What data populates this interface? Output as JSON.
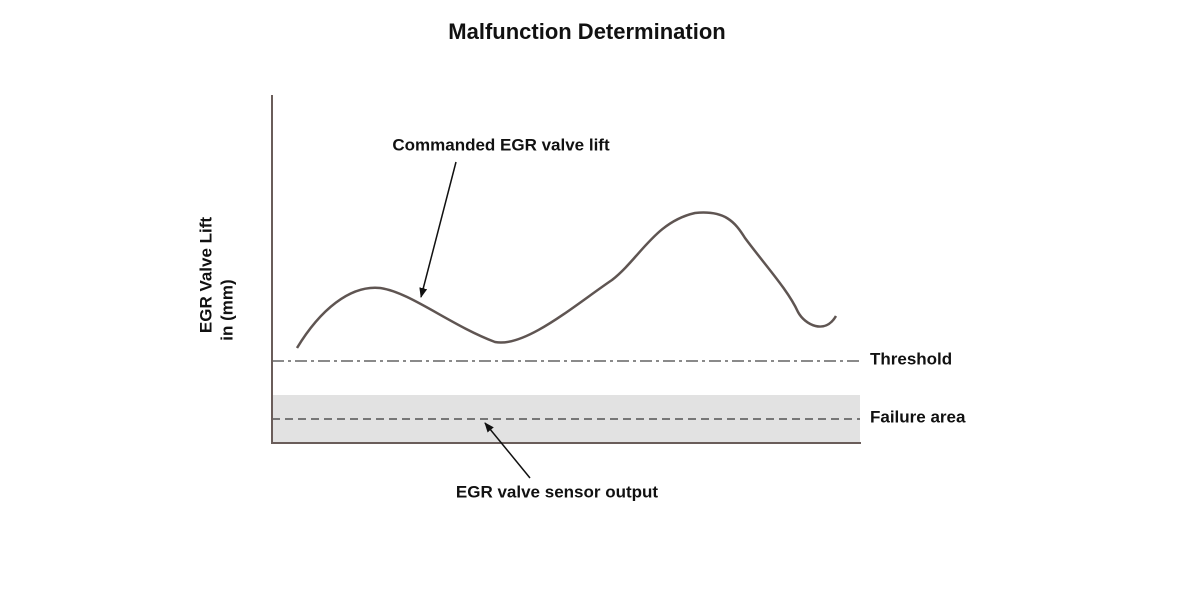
{
  "title": "Malfunction Determination",
  "y_axis_label": [
    "EGR Valve Lift",
    "in (mm)"
  ],
  "annotations": {
    "commanded": "Commanded EGR valve lift",
    "sensor_output": "EGR valve sensor output"
  },
  "line_labels": {
    "threshold": "Threshold",
    "failure_area": "Failure area"
  }
}
